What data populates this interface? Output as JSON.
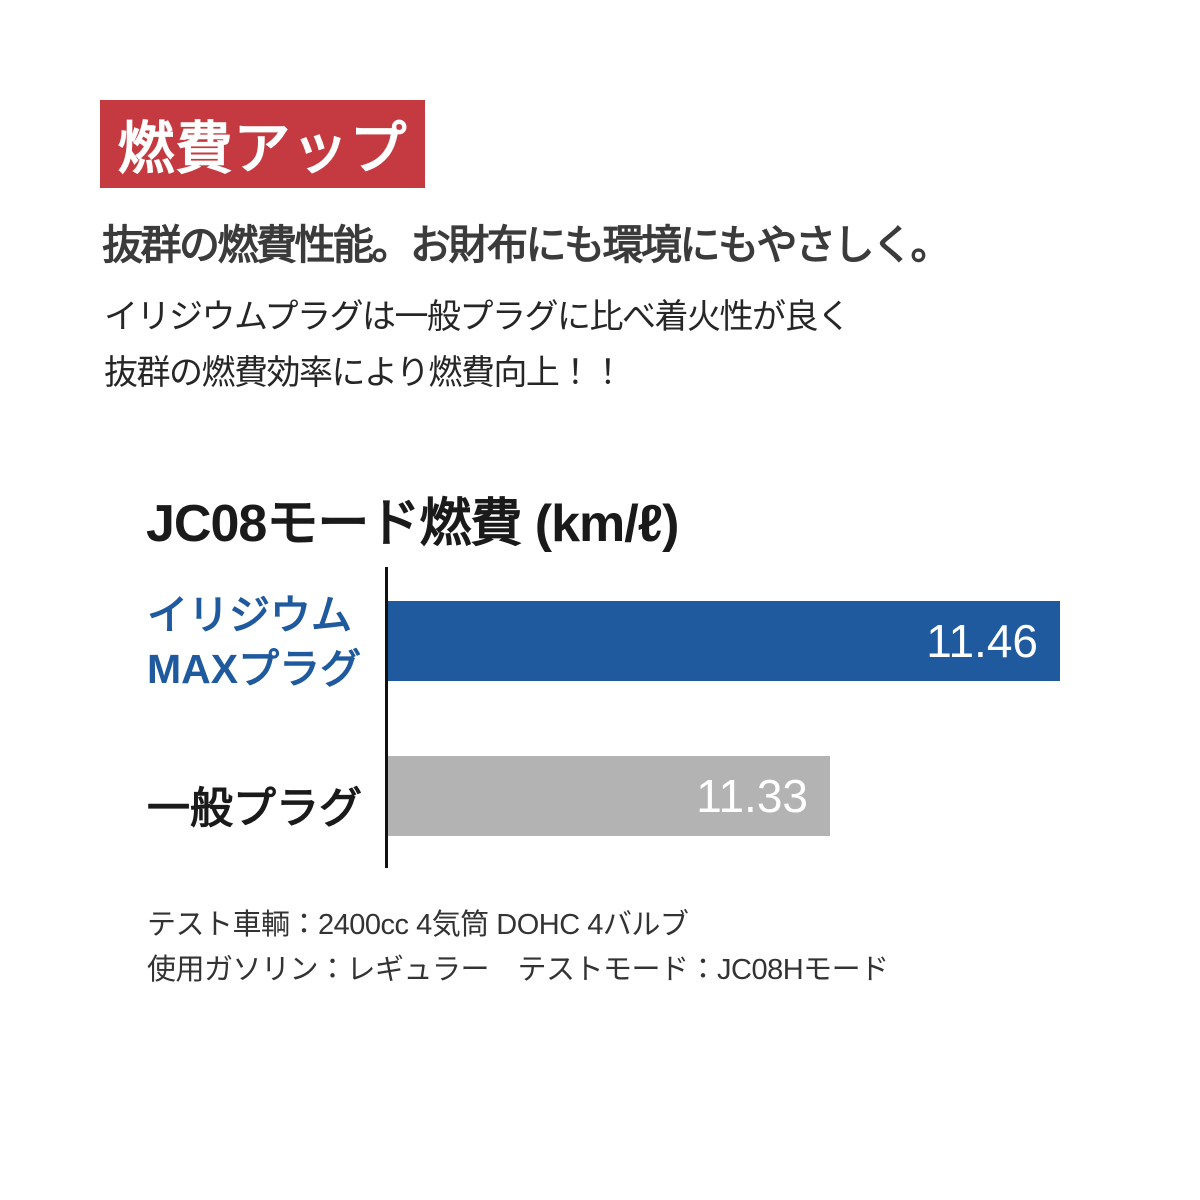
{
  "colors": {
    "background": "#ffffff",
    "banner_bg": "#c43a40",
    "banner_text": "#ffffff",
    "headline_text": "#3b3b3b",
    "body_text": "#262626",
    "iridium_blue": "#1f5a9e",
    "generic_gray": "#b3b3b3",
    "bar_value_text": "#ffffff",
    "axis": "#111111",
    "footnote_text": "#333333"
  },
  "banner": {
    "label": "燃費アップ"
  },
  "headline": "抜群の燃費性能。お財布にも環境にもやさしく。",
  "description": {
    "line1": "イリジウムプラグは一般プラグに比べ着火性が良く",
    "line2": "抜群の燃費効率により燃費向上！！"
  },
  "chart_data": {
    "type": "bar",
    "orientation": "horizontal",
    "title": "JC08モード燃費 (km/ℓ)",
    "unit": "km/ℓ",
    "xlim": [
      11.08,
      11.46
    ],
    "grid": false,
    "legend": "none",
    "categories": [
      "イリジウムMAXプラグ",
      "一般プラグ"
    ],
    "values": [
      11.46,
      11.33
    ],
    "series": [
      {
        "name": "イリジウムMAXプラグ",
        "label_line1": "イリジウム",
        "label_line2": "MAXプラグ",
        "value": 11.46,
        "value_label": "11.46",
        "bar_color": "#1f5a9e",
        "label_color": "#1f5a9e"
      },
      {
        "name": "一般プラグ",
        "label_line1": "一般プラグ",
        "label_line2": "",
        "value": 11.33,
        "value_label": "11.33",
        "bar_color": "#b3b3b3",
        "label_color": "#1a1a1a"
      }
    ]
  },
  "footnotes": {
    "line1": "テスト車輌：2400cc 4気筒 DOHC 4バルブ",
    "line2": "使用ガソリン：レギュラー　テストモード：JC08Hモード"
  }
}
